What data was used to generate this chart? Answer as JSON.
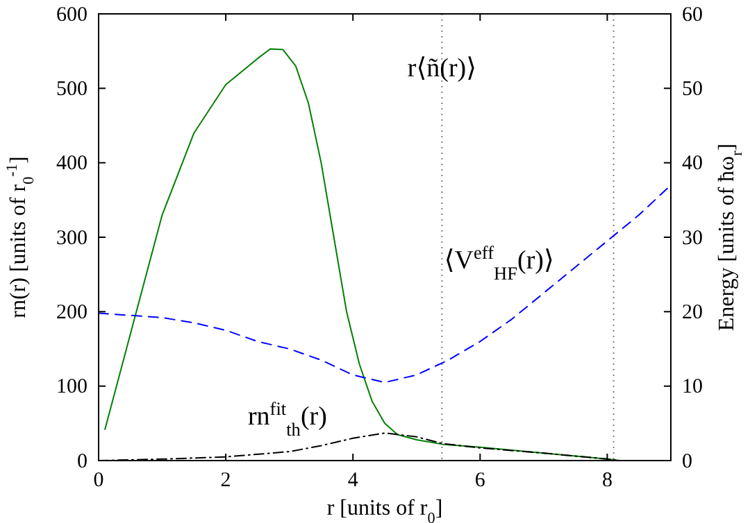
{
  "chart_data": {
    "type": "line",
    "xlabel": "r [units of r$_{0}$]",
    "ylabel": "rn(r) [units of r$_{0}$$^{-1}$]",
    "y2label": "Energy [units of ħω$_{r}$]",
    "xlim": [
      0,
      9
    ],
    "xticks": [
      0,
      2,
      4,
      6,
      8
    ],
    "ylim": [
      0,
      600
    ],
    "yticks": [
      0,
      100,
      200,
      300,
      400,
      500,
      600
    ],
    "y2lim": [
      0,
      60
    ],
    "y2ticks": [
      0,
      10,
      20,
      30,
      40,
      50,
      60
    ],
    "grid": false,
    "marker": "none",
    "series": [
      {
        "color": "#008000",
        "line_style": "solid",
        "x": [
          0.1,
          0.5,
          1.0,
          1.5,
          2.0,
          2.5,
          2.7,
          2.9,
          3.1,
          3.3,
          3.5,
          3.7,
          3.9,
          4.1,
          4.3,
          4.5,
          4.7,
          5.0,
          5.4,
          6.0,
          7.0,
          8.0,
          8.2,
          9.0
        ],
        "values": [
          42,
          170,
          330,
          440,
          505,
          540,
          553,
          552,
          530,
          480,
          400,
          300,
          200,
          130,
          80,
          50,
          35,
          28,
          22,
          18,
          10,
          2,
          0,
          0
        ]
      },
      {
        "color": "#000000",
        "line_style": "dashdot",
        "x": [
          0,
          1,
          2,
          3,
          3.5,
          4,
          4.5,
          5.0,
          5.4,
          6,
          7,
          8,
          8.2,
          9
        ],
        "values": [
          0,
          2,
          5,
          12,
          20,
          30,
          37,
          32,
          23,
          17,
          10,
          2,
          0,
          0
        ]
      },
      {
        "color": "#0000ff",
        "line_style": "dashed",
        "axis": "y2",
        "x": [
          0,
          0.5,
          1,
          1.5,
          2,
          2.5,
          3,
          3.5,
          4,
          4.5,
          5,
          5.5,
          6,
          6.5,
          7,
          7.5,
          8,
          8.5,
          9
        ],
        "values": [
          19.8,
          19.5,
          19.2,
          18.5,
          17.5,
          16,
          15,
          13.5,
          11.5,
          10.5,
          11.5,
          13.5,
          16,
          19,
          22.5,
          26,
          29.5,
          33,
          37
        ]
      }
    ],
    "ref_lines": [
      {
        "axis": "x",
        "value": 5.4,
        "color": "#808080",
        "line_style": "dotted"
      },
      {
        "axis": "x",
        "value": 8.1,
        "color": "#808080",
        "line_style": "dotted"
      }
    ],
    "annotations": [
      "r⟨ñ(r)⟩",
      "⟨V$^{eff}$$_{HF}$(r)⟩",
      "rn$^{fit}$$_{th}$(r)"
    ]
  }
}
